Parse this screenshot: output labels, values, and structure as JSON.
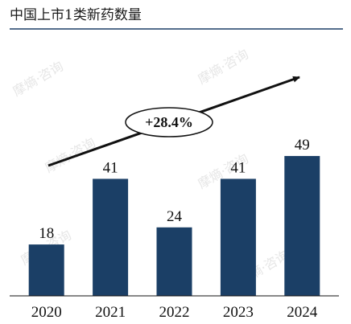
{
  "page": {
    "title": "中国上市1类新药数量"
  },
  "watermark": {
    "text": "摩熵·咨询"
  },
  "colors": {
    "bar": "#1b3f66",
    "accent_line": "#1b3f66",
    "text": "#111111",
    "arrow": "#111111"
  },
  "growth": {
    "label": "+28.4%"
  },
  "chart_data": {
    "type": "bar",
    "title": "中国上市1类新药数量",
    "categories": [
      "2020",
      "2021",
      "2022",
      "2023",
      "2024"
    ],
    "values": [
      18,
      41,
      24,
      41,
      49
    ],
    "xlabel": "",
    "ylabel": "",
    "ylim": [
      0,
      58
    ],
    "grid": false,
    "legend": "none",
    "annotations": [
      {
        "text": "+28.4%",
        "type": "trend-arrow"
      }
    ]
  }
}
